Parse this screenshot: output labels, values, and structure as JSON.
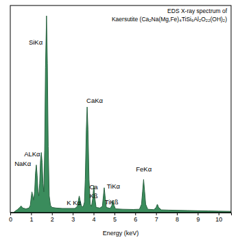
{
  "chart_data": {
    "type": "area",
    "title": [
      "EDS X-ray spectrum of",
      "Kaersutite (Ca₂Na(Mg,Fe)₄TiSi₆Al₂O₂₂(OH)₂)"
    ],
    "x_label": "Energy (keV)",
    "xlim": [
      0,
      10.6
    ],
    "xticks": [
      0,
      1,
      2,
      3,
      4,
      5,
      6,
      7,
      8,
      9,
      10
    ],
    "ylim": [
      0,
      100
    ],
    "tick_labels": "x",
    "color": "#3a8c5c",
    "x": [
      0,
      0.15,
      0.25,
      0.35,
      0.45,
      0.52,
      0.6,
      0.75,
      0.9,
      0.96,
      1.0,
      1.04,
      1.08,
      1.12,
      1.17,
      1.21,
      1.25,
      1.29,
      1.33,
      1.37,
      1.41,
      1.45,
      1.49,
      1.53,
      1.57,
      1.61,
      1.65,
      1.69,
      1.74,
      1.78,
      1.82,
      1.87,
      1.93,
      2.0,
      2.2,
      2.5,
      2.8,
      3.1,
      3.22,
      3.27,
      3.31,
      3.35,
      3.42,
      3.5,
      3.56,
      3.6,
      3.65,
      3.69,
      3.73,
      3.78,
      3.84,
      3.9,
      3.96,
      4.01,
      4.06,
      4.12,
      4.3,
      4.42,
      4.47,
      4.51,
      4.55,
      4.61,
      4.8,
      4.88,
      4.93,
      4.98,
      5.05,
      5.4,
      5.9,
      6.2,
      6.3,
      6.35,
      6.4,
      6.45,
      6.5,
      6.6,
      6.9,
      7.0,
      7.06,
      7.12,
      7.25,
      7.6,
      8.0,
      8.5,
      9.0,
      9.5,
      10.0,
      10.6
    ],
    "values": [
      0,
      0,
      0.8,
      1.5,
      2.4,
      3.2,
      2.2,
      1.8,
      2.2,
      3.5,
      7,
      10,
      8,
      6,
      10,
      19,
      23,
      18,
      10,
      8,
      14,
      25,
      29,
      24,
      14,
      10,
      30,
      70,
      95,
      72,
      32,
      8,
      3.5,
      2.5,
      2.2,
      2.0,
      2.0,
      2.0,
      3,
      6,
      8,
      6,
      3,
      2.8,
      5,
      16,
      40,
      51,
      40,
      16,
      4,
      3,
      7,
      13,
      7,
      2.5,
      2.2,
      3,
      8,
      12,
      8,
      2.5,
      2,
      3.5,
      6,
      3.5,
      1.8,
      1.6,
      1.5,
      1.6,
      4,
      10,
      16,
      10,
      4,
      1.6,
      1.4,
      2.5,
      4,
      2.5,
      1.3,
      1.2,
      1.1,
      1.0,
      0.9,
      0.8,
      0.7,
      0.6
    ],
    "annotations": [
      {
        "text": "SiKα",
        "x": 1.22,
        "y": 81
      },
      {
        "text": "ALKα",
        "x": 1.05,
        "y": 27
      },
      {
        "text": "NaKα",
        "x": 0.6,
        "y": 22.5
      },
      {
        "text": "K Kα",
        "x": 3.05,
        "y": 3.5
      },
      {
        "text": "CaKα",
        "x": 4.05,
        "y": 53
      },
      {
        "text": "Ca",
        "x": 4.0,
        "y": 11.3
      },
      {
        "text": "Kß",
        "x": 4.0,
        "y": 7
      },
      {
        "text": "TiKα",
        "x": 4.95,
        "y": 11.6
      },
      {
        "text": "TiKß",
        "x": 4.86,
        "y": 4
      },
      {
        "text": "FeKα",
        "x": 6.41,
        "y": 20
      }
    ]
  }
}
